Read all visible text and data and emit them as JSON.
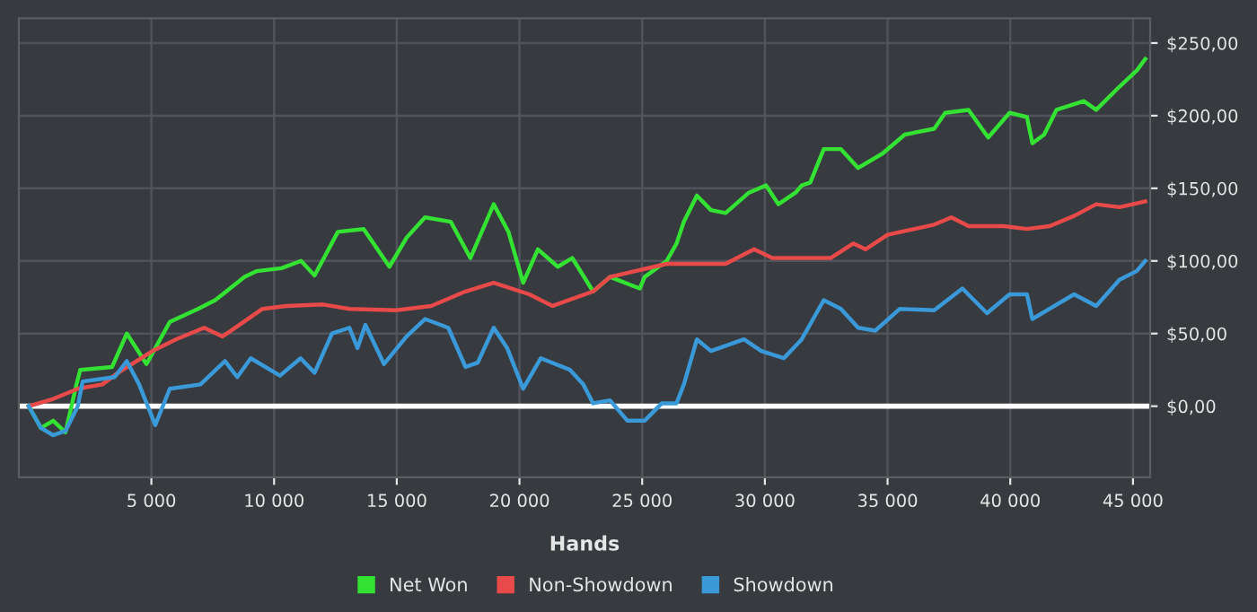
{
  "chart_data": {
    "type": "line",
    "xlabel": "Hands",
    "xlim": [
      -400,
      45700
    ],
    "ylim": [
      -49,
      267
    ],
    "xticks": [
      {
        "value": 5000,
        "label": "5 000"
      },
      {
        "value": 10000,
        "label": "10 000"
      },
      {
        "value": 15000,
        "label": "15 000"
      },
      {
        "value": 20000,
        "label": "20 000"
      },
      {
        "value": 25000,
        "label": "25 000"
      },
      {
        "value": 30000,
        "label": "30 000"
      },
      {
        "value": 35000,
        "label": "35 000"
      },
      {
        "value": 40000,
        "label": "40 000"
      },
      {
        "value": 45000,
        "label": "45 000"
      }
    ],
    "yticks": [
      {
        "value": 0,
        "label": "$0,00"
      },
      {
        "value": 50,
        "label": "$50,00"
      },
      {
        "value": 100,
        "label": "$100,00"
      },
      {
        "value": 150,
        "label": "$150,00"
      },
      {
        "value": 200,
        "label": "$200,00"
      },
      {
        "value": 250,
        "label": "$250,00"
      }
    ],
    "grid": true,
    "legend": "bottom",
    "marker": "none",
    "line_style": "solid",
    "ref_lines": [
      {
        "axis": "y",
        "value": 0,
        "label": null,
        "color": "#ffffff"
      }
    ],
    "series": [
      {
        "name": "Net Won",
        "color": "#33e233",
        "x": [
          0,
          500,
          1000,
          1500,
          1950,
          2100,
          3400,
          4000,
          4800,
          5750,
          6900,
          7600,
          8800,
          9300,
          10300,
          11100,
          11650,
          12600,
          13650,
          14700,
          15400,
          16150,
          17200,
          18000,
          18950,
          19550,
          20150,
          20750,
          21560,
          22150,
          23000,
          23690,
          24900,
          25100,
          26000,
          26400,
          26700,
          27230,
          27800,
          28400,
          29350,
          30050,
          30550,
          31250,
          31500,
          31850,
          32400,
          33100,
          33800,
          34800,
          35700,
          36900,
          37350,
          38300,
          39100,
          39970,
          40680,
          40900,
          41380,
          41880,
          43000,
          43500,
          44450,
          45150,
          45500
        ],
        "values": [
          0,
          -15,
          -10,
          -18,
          15,
          25,
          27,
          50,
          29,
          58,
          67,
          73,
          89,
          93,
          95,
          100,
          90,
          120,
          122,
          96,
          116,
          130,
          127,
          102,
          139,
          120,
          85,
          108,
          96,
          102,
          79,
          89,
          81,
          89,
          100,
          112,
          127,
          145,
          135,
          133,
          147,
          152,
          139,
          147,
          152,
          154,
          177,
          177,
          164,
          174,
          187,
          191,
          202,
          204,
          185,
          202,
          199,
          181,
          187,
          204,
          210,
          204,
          220,
          231,
          239
        ]
      },
      {
        "name": "Non-Showdown",
        "color": "#e84a4a",
        "x": [
          0,
          1000,
          2000,
          3000,
          3650,
          5050,
          6000,
          7150,
          7900,
          9530,
          10500,
          12000,
          13070,
          14960,
          16400,
          17800,
          18950,
          20400,
          21350,
          23000,
          23690,
          26000,
          28400,
          29560,
          30300,
          32680,
          33600,
          34100,
          35000,
          36900,
          37600,
          38300,
          39730,
          40680,
          41600,
          42600,
          43500,
          44450,
          45500
        ],
        "values": [
          0,
          5,
          12,
          15,
          23,
          38,
          46,
          54,
          48,
          67,
          69,
          70,
          67,
          66,
          69,
          79,
          85,
          77,
          69,
          79,
          89,
          98,
          98,
          108,
          102,
          102,
          112,
          108,
          118,
          125,
          130,
          124,
          124,
          122,
          124,
          131,
          139,
          137,
          141
        ]
      },
      {
        "name": "Showdown",
        "color": "#3a9ad9",
        "x": [
          0,
          500,
          1000,
          1500,
          2000,
          2200,
          3500,
          4000,
          4500,
          5160,
          5750,
          7000,
          8000,
          8500,
          9050,
          10240,
          11080,
          11650,
          12360,
          13070,
          13400,
          13720,
          14480,
          15400,
          16150,
          17100,
          17800,
          18300,
          18950,
          19500,
          20150,
          20870,
          22060,
          22600,
          23000,
          23690,
          24400,
          25100,
          25800,
          26400,
          26700,
          27230,
          27800,
          29150,
          29850,
          30770,
          31500,
          32400,
          33100,
          33800,
          34500,
          35500,
          36900,
          38050,
          39050,
          39970,
          40680,
          40900,
          41600,
          42600,
          43500,
          44450,
          45150,
          45500
        ],
        "values": [
          0,
          -15,
          -20,
          -17,
          0,
          17,
          20,
          31,
          15,
          -13,
          12,
          15,
          31,
          20,
          33,
          21,
          33,
          23,
          50,
          54,
          40,
          56,
          29,
          48,
          60,
          54,
          27,
          30,
          54,
          40,
          12,
          33,
          25,
          15,
          2,
          4,
          -10,
          -10,
          2,
          2,
          15,
          46,
          38,
          46,
          38,
          33,
          46,
          73,
          67,
          54,
          52,
          67,
          66,
          81,
          64,
          77,
          77,
          60,
          67,
          77,
          69,
          87,
          93,
          100
        ]
      }
    ]
  }
}
